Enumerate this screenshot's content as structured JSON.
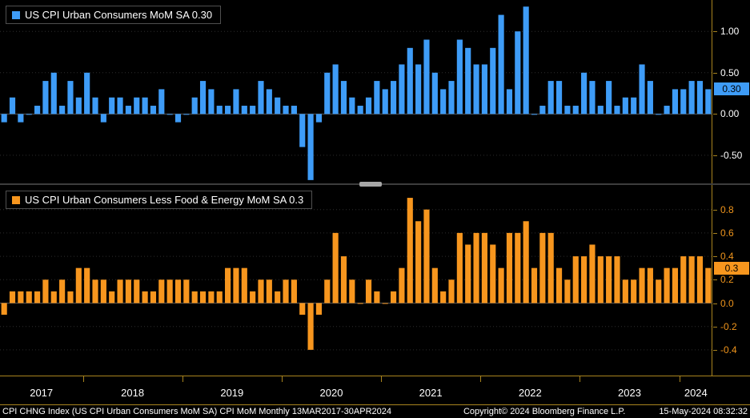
{
  "colors": {
    "background": "#000000",
    "axis": "#a9841e",
    "grid": "#2e2e2e",
    "grid_zero": "#565656",
    "headline_blue": "#3e9cf7",
    "core_orange": "#f7961e",
    "text": "#ffffff"
  },
  "panels": {
    "top": {
      "legend": "US CPI Urban Consumers MoM SA 0.30",
      "last_value": "0.30"
    },
    "bottom": {
      "legend": "US CPI Urban Consumers Less Food & Energy MoM SA 0.3",
      "last_value": "0.3"
    }
  },
  "status_bar": {
    "description": "CPI CHNG Index (US CPI Urban Consumers MoM SA) CPI MoM Monthly 13MAR2017-30APR2024",
    "copyright": "Copyright© 2024 Bloomberg Finance L.P.",
    "timestamp": "15-May-2024 08:32:32"
  },
  "chart_data": {
    "type": "bar",
    "frequency": "monthly",
    "x_tick_years": [
      "2017",
      "2018",
      "2019",
      "2020",
      "2021",
      "2022",
      "2023",
      "2024"
    ],
    "categories": [
      "2017-03",
      "2017-04",
      "2017-05",
      "2017-06",
      "2017-07",
      "2017-08",
      "2017-09",
      "2017-10",
      "2017-11",
      "2017-12",
      "2018-01",
      "2018-02",
      "2018-03",
      "2018-04",
      "2018-05",
      "2018-06",
      "2018-07",
      "2018-08",
      "2018-09",
      "2018-10",
      "2018-11",
      "2018-12",
      "2019-01",
      "2019-02",
      "2019-03",
      "2019-04",
      "2019-05",
      "2019-06",
      "2019-07",
      "2019-08",
      "2019-09",
      "2019-10",
      "2019-11",
      "2019-12",
      "2020-01",
      "2020-02",
      "2020-03",
      "2020-04",
      "2020-05",
      "2020-06",
      "2020-07",
      "2020-08",
      "2020-09",
      "2020-10",
      "2020-11",
      "2020-12",
      "2021-01",
      "2021-02",
      "2021-03",
      "2021-04",
      "2021-05",
      "2021-06",
      "2021-07",
      "2021-08",
      "2021-09",
      "2021-10",
      "2021-11",
      "2021-12",
      "2022-01",
      "2022-02",
      "2022-03",
      "2022-04",
      "2022-05",
      "2022-06",
      "2022-07",
      "2022-08",
      "2022-09",
      "2022-10",
      "2022-11",
      "2022-12",
      "2023-01",
      "2023-02",
      "2023-03",
      "2023-04",
      "2023-05",
      "2023-06",
      "2023-07",
      "2023-08",
      "2023-09",
      "2023-10",
      "2023-11",
      "2023-12",
      "2024-01",
      "2024-02",
      "2024-03",
      "2024-04"
    ],
    "series": [
      {
        "name": "US CPI Urban Consumers MoM SA",
        "panel": "top",
        "color": "#3e9cf7",
        "last": 0.3,
        "ylim": [
          -0.84,
          1.38
        ],
        "yticks": [
          1.0,
          0.5,
          0.0,
          -0.5
        ],
        "ytick_labels": [
          "1.00",
          "0.50",
          "0.00",
          "-0.50"
        ],
        "tick_label_color": "#ffffff",
        "values": [
          -0.1,
          0.2,
          -0.1,
          0.0,
          0.1,
          0.4,
          0.5,
          0.1,
          0.4,
          0.2,
          0.5,
          0.2,
          -0.1,
          0.2,
          0.2,
          0.1,
          0.2,
          0.2,
          0.1,
          0.3,
          0.0,
          -0.1,
          0.0,
          0.2,
          0.4,
          0.3,
          0.1,
          0.1,
          0.3,
          0.1,
          0.1,
          0.4,
          0.3,
          0.2,
          0.1,
          0.1,
          -0.4,
          -0.8,
          -0.1,
          0.5,
          0.6,
          0.4,
          0.2,
          0.1,
          0.2,
          0.4,
          0.3,
          0.4,
          0.6,
          0.8,
          0.6,
          0.9,
          0.5,
          0.3,
          0.4,
          0.9,
          0.8,
          0.6,
          0.6,
          0.8,
          1.2,
          0.3,
          1.0,
          1.3,
          0.0,
          0.1,
          0.4,
          0.4,
          0.1,
          0.1,
          0.5,
          0.4,
          0.1,
          0.4,
          0.1,
          0.2,
          0.2,
          0.6,
          0.4,
          0.0,
          0.1,
          0.3,
          0.3,
          0.4,
          0.4,
          0.3
        ]
      },
      {
        "name": "US CPI Urban Consumers Less Food & Energy MoM SA",
        "panel": "bottom",
        "color": "#f7961e",
        "last": 0.3,
        "ylim": [
          -0.62,
          1.01
        ],
        "yticks": [
          0.8,
          0.6,
          0.4,
          0.2,
          0.0,
          -0.2,
          -0.4
        ],
        "ytick_labels": [
          "0.8",
          "0.6",
          "0.4",
          "0.2",
          "0.0",
          "-0.2",
          "-0.4"
        ],
        "tick_label_color": "#f0951c",
        "values": [
          -0.1,
          0.1,
          0.1,
          0.1,
          0.1,
          0.2,
          0.1,
          0.2,
          0.1,
          0.3,
          0.3,
          0.2,
          0.2,
          0.1,
          0.2,
          0.2,
          0.2,
          0.1,
          0.1,
          0.2,
          0.2,
          0.2,
          0.2,
          0.1,
          0.1,
          0.1,
          0.1,
          0.3,
          0.3,
          0.3,
          0.1,
          0.2,
          0.2,
          0.1,
          0.2,
          0.2,
          -0.1,
          -0.4,
          -0.1,
          0.2,
          0.6,
          0.4,
          0.2,
          0.0,
          0.2,
          0.1,
          0.0,
          0.1,
          0.3,
          0.9,
          0.7,
          0.8,
          0.3,
          0.1,
          0.2,
          0.6,
          0.5,
          0.6,
          0.6,
          0.5,
          0.3,
          0.6,
          0.6,
          0.7,
          0.3,
          0.6,
          0.6,
          0.3,
          0.2,
          0.4,
          0.4,
          0.5,
          0.4,
          0.4,
          0.4,
          0.2,
          0.2,
          0.3,
          0.3,
          0.2,
          0.3,
          0.3,
          0.4,
          0.4,
          0.4,
          0.3
        ]
      }
    ]
  }
}
